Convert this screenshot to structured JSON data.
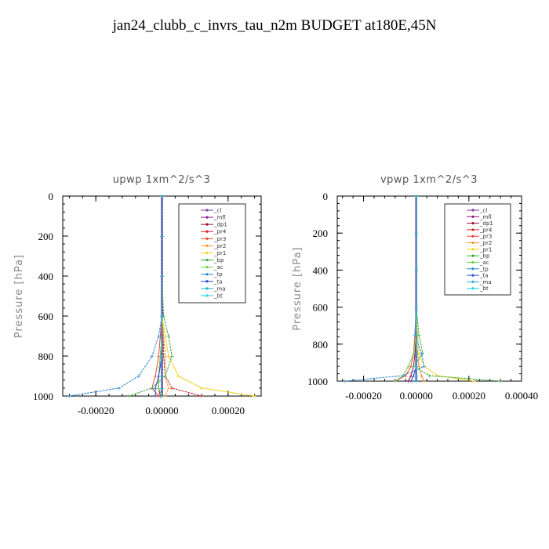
{
  "title": "jan24_clubb_c_invrs_tau_n2m  BUDGET at180E,45N",
  "chart_data": [
    {
      "type": "line",
      "title": "upwp   1xm^2/s^3",
      "ylabel": "Pressure  [hPa]",
      "xlabel": "",
      "xlim": [
        -0.0003,
        0.0003
      ],
      "ylim": [
        1000,
        0
      ],
      "xticks": [
        -0.0002,
        0.0,
        0.0002
      ],
      "xtick_labels": [
        "-0.00020",
        "0.00000",
        "0.00020"
      ],
      "yticks": [
        0,
        200,
        400,
        600,
        800,
        1000
      ],
      "ytick_labels": [
        "0",
        "200",
        "400",
        "600",
        "800",
        "1000"
      ],
      "legend_position": "top-right",
      "series": [
        {
          "name": "_cl",
          "color": "#7b3fa0",
          "x": [
            0,
            0,
            0,
            0,
            0,
            0,
            0,
            0,
            0
          ],
          "y": [
            0,
            200,
            400,
            600,
            700,
            800,
            900,
            960,
            1000
          ]
        },
        {
          "name": "_mfl",
          "color": "#8a1a8a",
          "x": [
            0,
            0,
            0,
            0,
            0,
            0,
            0,
            0,
            0
          ],
          "y": [
            0,
            200,
            400,
            600,
            700,
            800,
            900,
            960,
            1000
          ]
        },
        {
          "name": "_dp1",
          "color": "#a0103a",
          "x": [
            0,
            0,
            0,
            0,
            0,
            -5e-06,
            -1e-05,
            -1e-05,
            -5e-06
          ],
          "y": [
            0,
            200,
            400,
            600,
            700,
            800,
            900,
            960,
            1000
          ]
        },
        {
          "name": "_pr4",
          "color": "#d2232a",
          "x": [
            0,
            0,
            0,
            0,
            5e-06,
            5e-06,
            1e-05,
            3e-05,
            0.00012
          ],
          "y": [
            0,
            200,
            400,
            600,
            700,
            800,
            900,
            960,
            1000
          ]
        },
        {
          "name": "_pr3",
          "color": "#e8473a",
          "x": [
            0,
            0,
            0,
            0,
            -5e-06,
            -1e-05,
            -2e-05,
            -3e-05,
            -1e-05
          ],
          "y": [
            0,
            200,
            400,
            600,
            700,
            800,
            900,
            960,
            1000
          ]
        },
        {
          "name": "_pr2",
          "color": "#f09a2a",
          "x": [
            0,
            0,
            0,
            0,
            5e-06,
            1e-05,
            1e-05,
            2e-05,
            1e-05
          ],
          "y": [
            0,
            200,
            400,
            600,
            700,
            800,
            900,
            960,
            1000
          ]
        },
        {
          "name": "_pr1",
          "color": "#f2d21c",
          "x": [
            0,
            0,
            0,
            0,
            1e-05,
            2e-05,
            5e-05,
            0.00012,
            0.00028
          ],
          "y": [
            0,
            200,
            400,
            600,
            700,
            800,
            900,
            960,
            1000
          ]
        },
        {
          "name": "_bp",
          "color": "#3aa63a",
          "x": [
            0,
            0,
            0,
            5e-06,
            2e-05,
            3e-05,
            1e-05,
            -3e-05,
            -0.0001
          ],
          "y": [
            0,
            200,
            400,
            600,
            700,
            800,
            900,
            960,
            1000
          ]
        },
        {
          "name": "_ac",
          "color": "#6bd34a",
          "x": [
            0,
            0,
            0,
            0,
            0,
            -5e-06,
            -1e-05,
            -1e-05,
            0
          ],
          "y": [
            0,
            200,
            400,
            600,
            700,
            800,
            900,
            960,
            1000
          ]
        },
        {
          "name": "_tp",
          "color": "#2a8ad2",
          "x": [
            0,
            0,
            0,
            0,
            -1e-05,
            -3e-05,
            -7e-05,
            -0.00013,
            -0.00028
          ],
          "y": [
            0,
            200,
            400,
            600,
            700,
            800,
            900,
            960,
            1000
          ]
        },
        {
          "name": "_ta",
          "color": "#2a4ad2",
          "x": [
            0,
            0,
            0,
            0,
            0,
            0,
            -1e-05,
            -2e-05,
            -2e-05
          ],
          "y": [
            0,
            200,
            400,
            600,
            700,
            800,
            900,
            960,
            1000
          ]
        },
        {
          "name": "_ma",
          "color": "#2ab0d8",
          "x": [
            0,
            0,
            0,
            0,
            0,
            0,
            0,
            0,
            0
          ],
          "y": [
            0,
            200,
            400,
            600,
            700,
            800,
            900,
            960,
            1000
          ]
        },
        {
          "name": "_bt",
          "color": "#22d8e8",
          "x": [
            0,
            0,
            0,
            0,
            0,
            0,
            0,
            0,
            0
          ],
          "y": [
            0,
            200,
            400,
            600,
            700,
            800,
            900,
            960,
            1000
          ]
        }
      ]
    },
    {
      "type": "line",
      "title": "vpwp   1xm^2/s^3",
      "ylabel": "Pressure  [hPa]",
      "xlabel": "",
      "xlim": [
        -0.0003,
        0.0004
      ],
      "ylim": [
        1000,
        0
      ],
      "xticks": [
        -0.0002,
        0.0,
        0.0002,
        0.0004
      ],
      "xtick_labels": [
        "-0.00020",
        "0.00000",
        "0.00020",
        "0.00040"
      ],
      "yticks": [
        0,
        200,
        400,
        600,
        800,
        1000
      ],
      "ytick_labels": [
        "0",
        "200",
        "400",
        "600",
        "800",
        "1000"
      ],
      "legend_position": "top-right",
      "series": [
        {
          "name": "_cl",
          "color": "#7b3fa0",
          "x": [
            0,
            0,
            0,
            0,
            0,
            0,
            0,
            0,
            0
          ],
          "y": [
            0,
            200,
            400,
            600,
            750,
            850,
            920,
            970,
            1000
          ]
        },
        {
          "name": "_mfl",
          "color": "#8a1a8a",
          "x": [
            0,
            0,
            0,
            0,
            0,
            0,
            0,
            0,
            0
          ],
          "y": [
            0,
            200,
            400,
            600,
            750,
            850,
            920,
            970,
            1000
          ]
        },
        {
          "name": "_dp1",
          "color": "#a0103a",
          "x": [
            0,
            0,
            0,
            0,
            0,
            -5e-06,
            -1e-05,
            -2e-05,
            -3e-05
          ],
          "y": [
            0,
            200,
            400,
            600,
            750,
            850,
            920,
            970,
            1000
          ]
        },
        {
          "name": "_pr4",
          "color": "#d2232a",
          "x": [
            0,
            0,
            0,
            0,
            0,
            5e-06,
            1e-05,
            2e-05,
            3e-05
          ],
          "y": [
            0,
            200,
            400,
            600,
            750,
            850,
            920,
            970,
            1000
          ]
        },
        {
          "name": "_pr3",
          "color": "#e8473a",
          "x": [
            0,
            0,
            0,
            0,
            -5e-06,
            -1e-05,
            -2e-05,
            -4e-05,
            -8e-05
          ],
          "y": [
            0,
            200,
            400,
            600,
            750,
            850,
            920,
            970,
            1000
          ]
        },
        {
          "name": "_pr2",
          "color": "#f09a2a",
          "x": [
            0,
            0,
            0,
            0,
            0,
            5e-06,
            1e-05,
            2e-05,
            3e-05
          ],
          "y": [
            0,
            200,
            400,
            600,
            750,
            850,
            920,
            970,
            1000
          ]
        },
        {
          "name": "_pr1",
          "color": "#f2d21c",
          "x": [
            0,
            0,
            0,
            0,
            5e-06,
            1e-05,
            3e-05,
            8e-05,
            0.00022
          ],
          "y": [
            0,
            200,
            400,
            600,
            750,
            850,
            920,
            970,
            1000
          ]
        },
        {
          "name": "_bp",
          "color": "#3aa63a",
          "x": [
            0,
            0,
            0,
            0,
            1e-05,
            2.5e-05,
            -1e-05,
            5e-05,
            0.00032
          ],
          "y": [
            0,
            200,
            400,
            600,
            750,
            850,
            920,
            970,
            1000
          ]
        },
        {
          "name": "_ac",
          "color": "#6bd34a",
          "x": [
            0,
            0,
            0,
            0,
            0,
            -1e-05,
            -3e-05,
            -5e-05,
            -8e-05
          ],
          "y": [
            0,
            200,
            400,
            600,
            750,
            850,
            920,
            970,
            1000
          ]
        },
        {
          "name": "_tp",
          "color": "#2a8ad2",
          "x": [
            0,
            0,
            0,
            0,
            -5e-06,
            2e-05,
            3e-05,
            -5e-05,
            -0.00027
          ],
          "y": [
            0,
            200,
            400,
            600,
            750,
            850,
            920,
            970,
            1000
          ]
        },
        {
          "name": "_ta",
          "color": "#2a4ad2",
          "x": [
            0,
            0,
            0,
            0,
            0,
            0,
            0,
            -1e-05,
            -2e-05
          ],
          "y": [
            0,
            200,
            400,
            600,
            750,
            850,
            920,
            970,
            1000
          ]
        },
        {
          "name": "_ma",
          "color": "#2ab0d8",
          "x": [
            0,
            0,
            0,
            0,
            0,
            0,
            0,
            0,
            0
          ],
          "y": [
            0,
            200,
            400,
            600,
            750,
            850,
            920,
            970,
            1000
          ]
        },
        {
          "name": "_bt",
          "color": "#22d8e8",
          "x": [
            0,
            0,
            0,
            0,
            0,
            0,
            0,
            0,
            0
          ],
          "y": [
            0,
            200,
            400,
            600,
            750,
            850,
            920,
            970,
            1000
          ]
        }
      ]
    }
  ]
}
